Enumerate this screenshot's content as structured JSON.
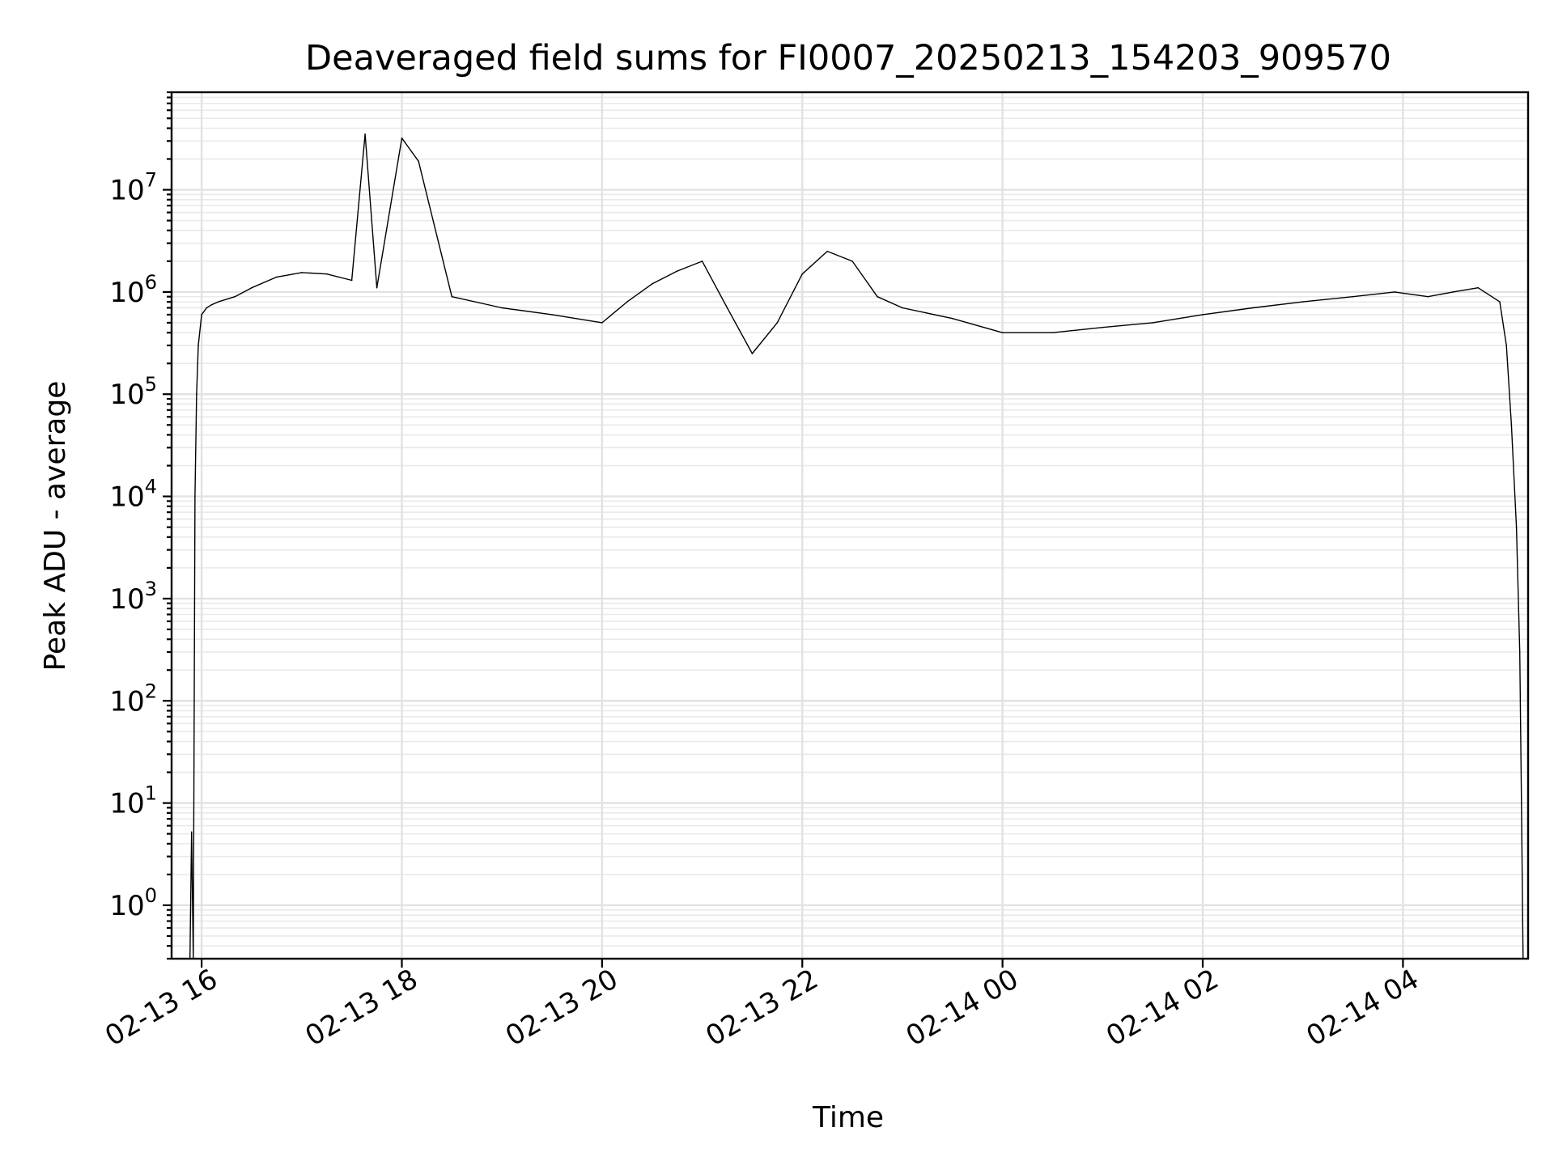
{
  "chart_data": {
    "type": "line",
    "title": "Deaveraged field sums for FI0007_20250213_154203_909570",
    "xlabel": "Time",
    "ylabel": "Peak ADU - average",
    "yscale": "log",
    "ylim": [
      0.3,
      90000000
    ],
    "xlim": [
      "2025-02-13T15:42",
      "2025-02-14T05:15"
    ],
    "x_ticks": [
      {
        "value": "2025-02-13T16:00",
        "label": "02-13 16"
      },
      {
        "value": "2025-02-13T18:00",
        "label": "02-13 18"
      },
      {
        "value": "2025-02-13T20:00",
        "label": "02-13 20"
      },
      {
        "value": "2025-02-13T22:00",
        "label": "02-13 22"
      },
      {
        "value": "2025-02-14T00:00",
        "label": "02-14 00"
      },
      {
        "value": "2025-02-14T02:00",
        "label": "02-14 02"
      },
      {
        "value": "2025-02-14T04:00",
        "label": "02-14 04"
      }
    ],
    "y_ticks": [
      {
        "value": 1,
        "base": "10",
        "exp": "0"
      },
      {
        "value": 10,
        "base": "10",
        "exp": "1"
      },
      {
        "value": 100,
        "base": "10",
        "exp": "2"
      },
      {
        "value": 1000,
        "base": "10",
        "exp": "3"
      },
      {
        "value": 10000,
        "base": "10",
        "exp": "4"
      },
      {
        "value": 100000,
        "base": "10",
        "exp": "5"
      },
      {
        "value": 1000000,
        "base": "10",
        "exp": "6"
      },
      {
        "value": 10000000,
        "base": "10",
        "exp": "7"
      }
    ],
    "grid": true,
    "line_color": "#000000",
    "series": [
      {
        "x": [
          "2025-02-13T15:53",
          "2025-02-13T15:54",
          "2025-02-13T15:55",
          "2025-02-13T15:56",
          "2025-02-13T15:57",
          "2025-02-13T15:58",
          "2025-02-13T16:00",
          "2025-02-13T16:03",
          "2025-02-13T16:06",
          "2025-02-13T16:10",
          "2025-02-13T16:20",
          "2025-02-13T16:30",
          "2025-02-13T16:45",
          "2025-02-13T17:00",
          "2025-02-13T17:15",
          "2025-02-13T17:30",
          "2025-02-13T17:38",
          "2025-02-13T17:45",
          "2025-02-13T18:00",
          "2025-02-13T18:10",
          "2025-02-13T18:30",
          "2025-02-13T19:00",
          "2025-02-13T19:30",
          "2025-02-13T20:00",
          "2025-02-13T20:15",
          "2025-02-13T20:30",
          "2025-02-13T20:45",
          "2025-02-13T21:00",
          "2025-02-13T21:15",
          "2025-02-13T21:30",
          "2025-02-13T21:45",
          "2025-02-13T22:00",
          "2025-02-13T22:15",
          "2025-02-13T22:30",
          "2025-02-13T22:45",
          "2025-02-13T23:00",
          "2025-02-13T23:30",
          "2025-02-14T00:00",
          "2025-02-14T00:30",
          "2025-02-14T01:00",
          "2025-02-14T01:30",
          "2025-02-14T02:00",
          "2025-02-14T02:30",
          "2025-02-14T03:00",
          "2025-02-14T03:30",
          "2025-02-14T03:55",
          "2025-02-14T04:15",
          "2025-02-14T04:30",
          "2025-02-14T04:45",
          "2025-02-14T04:58",
          "2025-02-14T05:02",
          "2025-02-14T05:05",
          "2025-02-14T05:08",
          "2025-02-14T05:10",
          "2025-02-14T05:11",
          "2025-02-14T05:12"
        ],
        "y": [
          0.3,
          5.2,
          0.3,
          10000,
          100000,
          300000,
          600000,
          700000,
          750000,
          800000,
          900000,
          1100000,
          1400000,
          1550000,
          1500000,
          1300000,
          35000000,
          1100000,
          32000000,
          19000000,
          900000,
          700000,
          600000,
          500000,
          800000,
          1200000,
          1600000,
          2000000,
          700000,
          250000,
          500000,
          1500000,
          2500000,
          2000000,
          900000,
          700000,
          550000,
          400000,
          400000,
          450000,
          500000,
          600000,
          700000,
          800000,
          900000,
          1000000,
          900000,
          1000000,
          1100000,
          800000,
          300000,
          50000,
          5000,
          300,
          10,
          0.3
        ]
      }
    ]
  }
}
